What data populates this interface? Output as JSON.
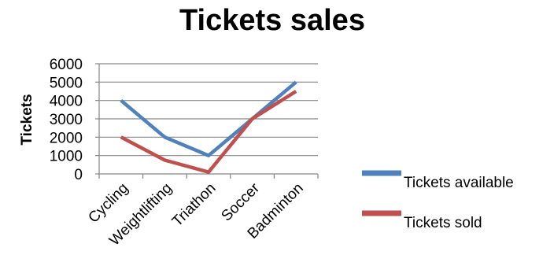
{
  "chart_data": {
    "type": "line",
    "title": "Tickets sales",
    "xlabel": "",
    "ylabel": "Tickets",
    "categories": [
      "Cycling",
      "Weightlifting",
      "Triathon",
      "Soccer",
      "Badminton"
    ],
    "series": [
      {
        "name": "Tickets available",
        "values": [
          4000,
          2000,
          1000,
          3000,
          5000
        ],
        "color": "#4F81BD"
      },
      {
        "name": "Tickets sold",
        "values": [
          2000,
          750,
          100,
          3000,
          4500
        ],
        "color": "#C0504D"
      }
    ],
    "ylim": [
      0,
      6000
    ],
    "yticks": [
      0,
      1000,
      2000,
      3000,
      4000,
      5000,
      6000
    ],
    "grid": true,
    "legend": "right"
  }
}
